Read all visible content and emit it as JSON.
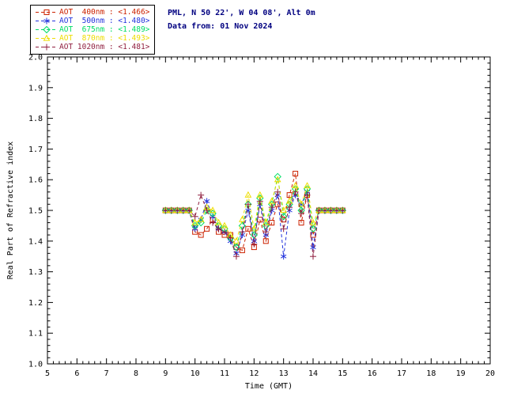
{
  "header": {
    "location_line": "PML, N 50 22', W 04 08', Alt 0m",
    "data_from_line": "Data from: 01 Nov 2024",
    "text_color": "#000080"
  },
  "legend": {
    "entries": [
      {
        "label": "AOT  400nm : <1.466>",
        "color": "#cc2200",
        "marker": "square"
      },
      {
        "label": "AOT  500nm : <1.480>",
        "color": "#2233dd",
        "marker": "asterisk"
      },
      {
        "label": "AOT  675nm : <1.489>",
        "color": "#00dd66",
        "marker": "diamond"
      },
      {
        "label": "AOT  870nm : <1.493>",
        "color": "#eedd00",
        "marker": "triangle"
      },
      {
        "label": "AOT 1020nm : <1.481>",
        "color": "#902040",
        "marker": "plus"
      }
    ]
  },
  "chart_data": {
    "type": "line",
    "title": "",
    "xlabel": "Time (GMT)",
    "ylabel": "Real Part of Refractive index",
    "xlim": [
      5,
      20
    ],
    "ylim": [
      1.0,
      2.0
    ],
    "x_ticks": [
      5,
      6,
      7,
      8,
      9,
      10,
      11,
      12,
      13,
      14,
      15,
      16,
      17,
      18,
      19,
      20
    ],
    "y_ticks": [
      1.0,
      1.1,
      1.2,
      1.3,
      1.4,
      1.5,
      1.6,
      1.7,
      1.8,
      1.9,
      2.0
    ],
    "x_minor_step": 0.2,
    "y_minor_step": 0.02,
    "grid": false,
    "legend_position": "top-left",
    "axis_color": "#000000",
    "background": "#ffffff",
    "x": [
      9.0,
      9.2,
      9.4,
      9.6,
      9.8,
      10.0,
      10.2,
      10.4,
      10.6,
      10.8,
      11.0,
      11.2,
      11.4,
      11.6,
      11.8,
      12.0,
      12.2,
      12.4,
      12.6,
      12.8,
      13.0,
      13.2,
      13.4,
      13.6,
      13.8,
      14.0,
      14.2,
      14.4,
      14.6,
      14.8,
      15.0
    ],
    "series": [
      {
        "name": "AOT 400nm",
        "mean": 1.466,
        "color": "#cc2200",
        "marker": "square",
        "values": [
          1.5,
          1.5,
          1.5,
          1.5,
          1.5,
          1.43,
          1.42,
          1.44,
          1.47,
          1.43,
          1.42,
          1.42,
          1.38,
          1.37,
          1.44,
          1.38,
          1.47,
          1.4,
          1.46,
          1.52,
          1.47,
          1.55,
          1.62,
          1.46,
          1.55,
          1.42,
          1.5,
          1.5,
          1.5,
          1.5,
          1.5
        ]
      },
      {
        "name": "AOT 500nm",
        "mean": 1.48,
        "color": "#2233dd",
        "marker": "asterisk",
        "values": [
          1.5,
          1.5,
          1.5,
          1.5,
          1.5,
          1.44,
          1.47,
          1.53,
          1.48,
          1.44,
          1.43,
          1.4,
          1.36,
          1.42,
          1.5,
          1.4,
          1.52,
          1.42,
          1.5,
          1.55,
          1.35,
          1.5,
          1.55,
          1.52,
          1.56,
          1.38,
          1.5,
          1.5,
          1.5,
          1.5,
          1.5
        ]
      },
      {
        "name": "AOT 675nm",
        "mean": 1.489,
        "color": "#00dd66",
        "marker": "diamond",
        "values": [
          1.5,
          1.5,
          1.5,
          1.5,
          1.5,
          1.45,
          1.46,
          1.5,
          1.49,
          1.45,
          1.44,
          1.41,
          1.38,
          1.45,
          1.52,
          1.42,
          1.54,
          1.45,
          1.52,
          1.61,
          1.48,
          1.52,
          1.57,
          1.5,
          1.57,
          1.44,
          1.5,
          1.5,
          1.5,
          1.5,
          1.5
        ]
      },
      {
        "name": "AOT 870nm",
        "mean": 1.493,
        "color": "#eedd00",
        "marker": "triangle",
        "values": [
          1.5,
          1.5,
          1.5,
          1.5,
          1.5,
          1.46,
          1.47,
          1.51,
          1.5,
          1.46,
          1.45,
          1.42,
          1.4,
          1.47,
          1.55,
          1.44,
          1.55,
          1.46,
          1.53,
          1.6,
          1.5,
          1.53,
          1.58,
          1.52,
          1.58,
          1.46,
          1.5,
          1.5,
          1.5,
          1.5,
          1.5
        ]
      },
      {
        "name": "AOT 1020nm",
        "mean": 1.481,
        "color": "#902040",
        "marker": "plus",
        "values": [
          1.5,
          1.5,
          1.5,
          1.5,
          1.5,
          1.48,
          1.55,
          1.5,
          1.46,
          1.44,
          1.43,
          1.41,
          1.35,
          1.43,
          1.52,
          1.39,
          1.53,
          1.43,
          1.51,
          1.56,
          1.44,
          1.51,
          1.56,
          1.49,
          1.55,
          1.35,
          1.5,
          1.5,
          1.5,
          1.5,
          1.5
        ]
      }
    ]
  }
}
